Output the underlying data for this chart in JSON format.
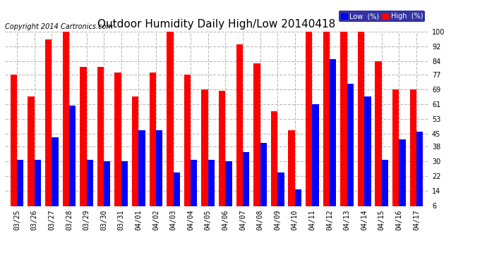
{
  "title": "Outdoor Humidity Daily High/Low 20140418",
  "copyright": "Copyright 2014 Cartronics.com",
  "legend_low": "Low  (%)",
  "legend_high": "High  (%)",
  "dates": [
    "03/25",
    "03/26",
    "03/27",
    "03/28",
    "03/29",
    "03/30",
    "03/31",
    "04/01",
    "04/02",
    "04/03",
    "04/04",
    "04/05",
    "04/06",
    "04/07",
    "04/08",
    "04/09",
    "04/10",
    "04/11",
    "04/12",
    "04/13",
    "04/14",
    "04/15",
    "04/16",
    "04/17"
  ],
  "high": [
    77,
    65,
    96,
    100,
    81,
    81,
    78,
    65,
    78,
    100,
    77,
    69,
    68,
    93,
    83,
    57,
    47,
    100,
    100,
    100,
    100,
    84,
    69,
    69
  ],
  "low": [
    31,
    31,
    43,
    60,
    31,
    30,
    30,
    47,
    47,
    24,
    31,
    31,
    30,
    35,
    40,
    24,
    15,
    61,
    85,
    72,
    65,
    31,
    42,
    46
  ],
  "ylim": [
    6,
    100
  ],
  "yticks": [
    6,
    14,
    22,
    30,
    38,
    45,
    53,
    61,
    69,
    77,
    84,
    92,
    100
  ],
  "bar_width": 0.38,
  "high_color": "#ff0000",
  "low_color": "#0000ff",
  "bg_color": "#ffffff",
  "grid_color": "#bbbbbb",
  "title_fontsize": 11,
  "tick_fontsize": 7,
  "copyright_fontsize": 7
}
